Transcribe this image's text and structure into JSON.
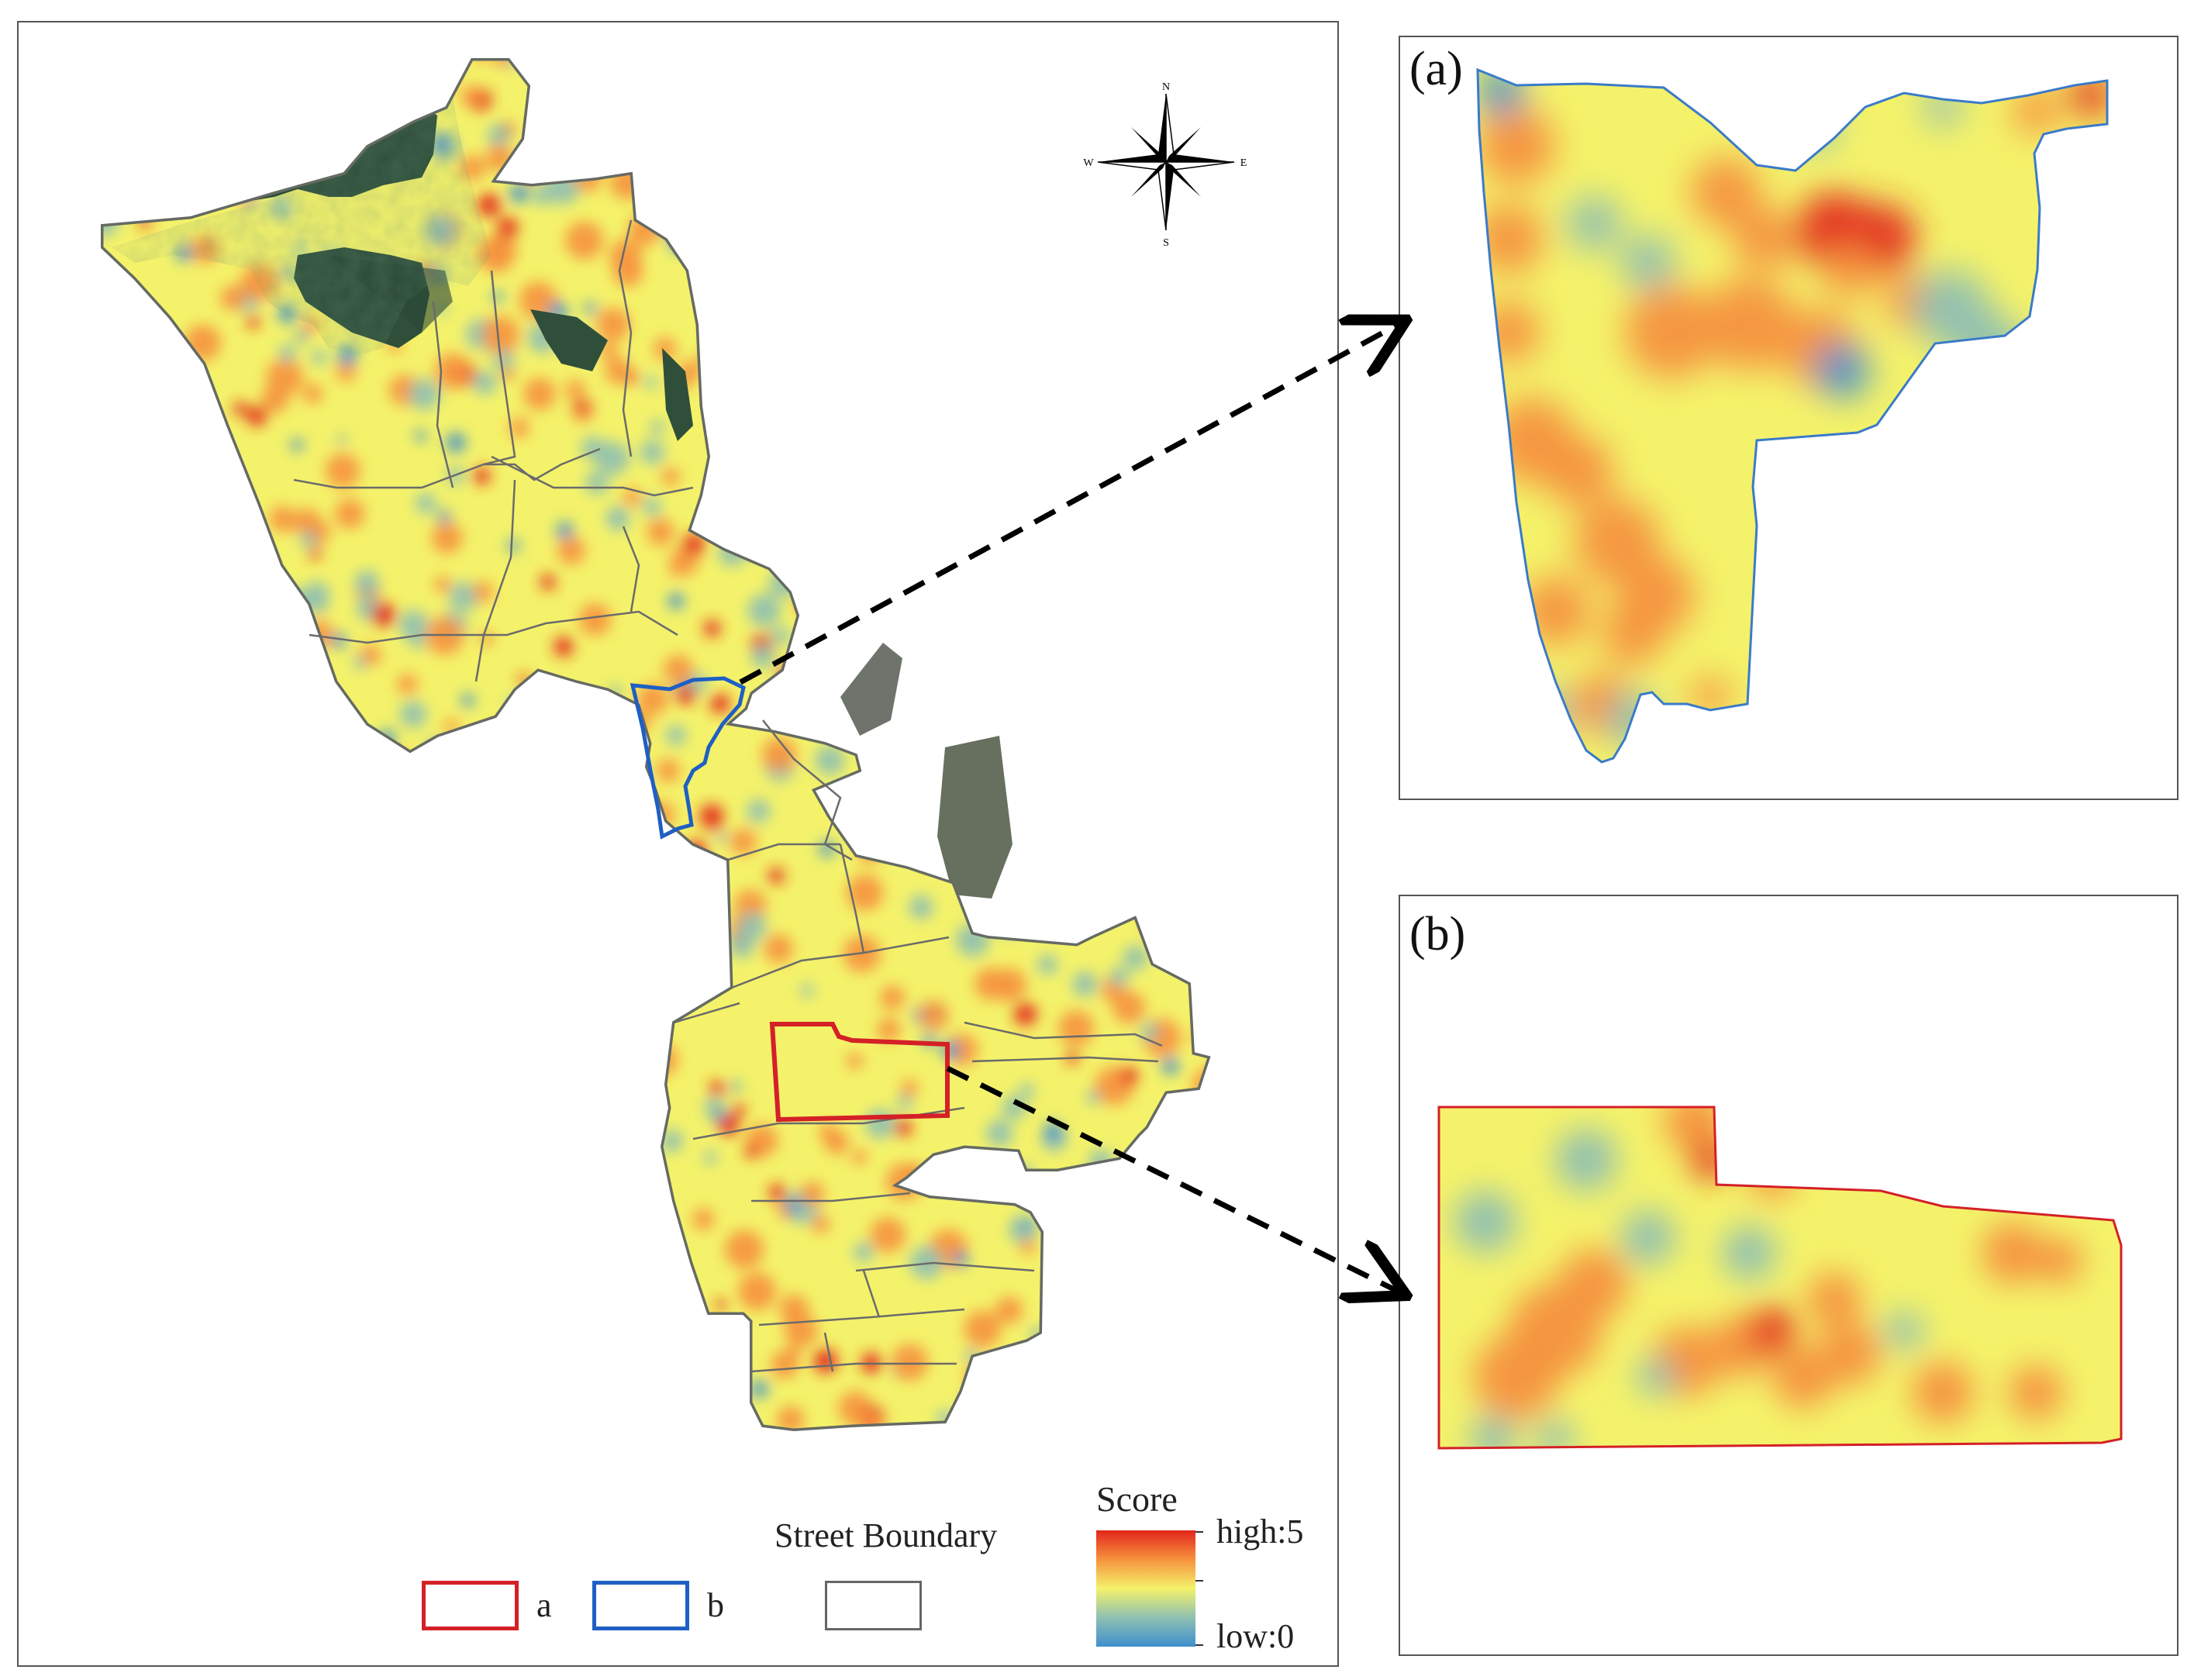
{
  "panels": {
    "a": {
      "label": "(a)"
    },
    "b": {
      "label": "(b)"
    }
  },
  "compass": {
    "n": "N",
    "s": "S",
    "e": "E",
    "w": "W"
  },
  "legend": {
    "boundary_title": "Street Boundary",
    "score_title": "Score",
    "high_label": "high:5",
    "low_label": "low:0",
    "items": [
      {
        "label": "a",
        "color": "#d42027"
      },
      {
        "label": "b",
        "color": "#1f5fc4"
      },
      {
        "label": "",
        "color": "#666666"
      }
    ]
  },
  "colors": {
    "score_high": "#e3261b",
    "score_mid_high": "#f6923e",
    "score_mid": "#f4f26a",
    "score_mid_low": "#8fc0b2",
    "score_low": "#3f8fce",
    "vegetation": "#2f4f3a"
  },
  "score_range": [
    0,
    5
  ]
}
